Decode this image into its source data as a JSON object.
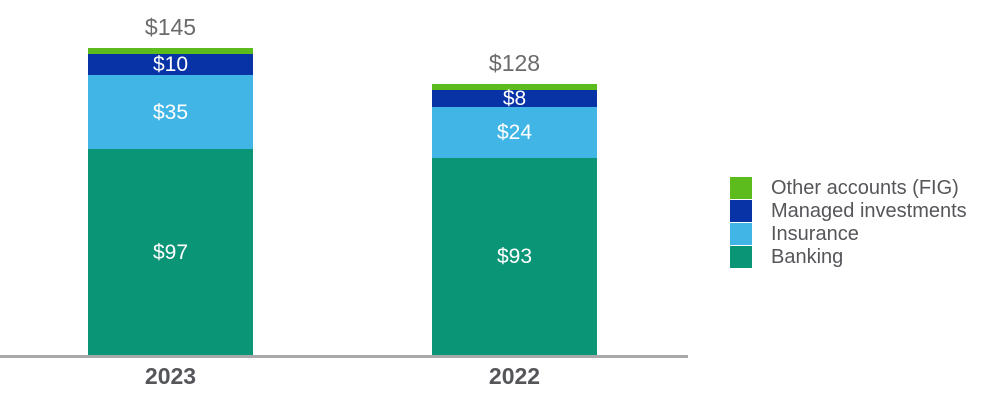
{
  "chart_data": {
    "type": "bar",
    "subtype": "stacked-vertical",
    "categories": [
      "2023",
      "2022"
    ],
    "totals": [
      {
        "value": 145,
        "label": "$145"
      },
      {
        "value": 128,
        "label": "$128"
      }
    ],
    "series": [
      {
        "name": "Banking",
        "color": "#0B9577",
        "values": [
          97,
          93
        ],
        "labels": [
          "$97",
          "$93"
        ]
      },
      {
        "name": "Insurance",
        "color": "#41B6E6",
        "values": [
          35,
          24
        ],
        "labels": [
          "$35",
          "$24"
        ]
      },
      {
        "name": "Managed investments",
        "color": "#0833A6",
        "values": [
          10,
          8
        ],
        "labels": [
          "$10",
          "$8"
        ]
      },
      {
        "name": "Other accounts (FIG)",
        "color": "#5CBC1E",
        "values": [
          3,
          3
        ],
        "labels": [
          "",
          ""
        ]
      }
    ],
    "legend": {
      "position": "right",
      "items": [
        {
          "label": "Other accounts (FIG)",
          "color": "#5CBC1E"
        },
        {
          "label": "Managed investments",
          "color": "#0833A6"
        },
        {
          "label": "Insurance",
          "color": "#41B6E6"
        },
        {
          "label": "Banking",
          "color": "#0B9577"
        }
      ]
    },
    "title": "",
    "xlabel": "",
    "ylabel": "",
    "grid": false,
    "value_axis_visible": false,
    "baseline_axis": {
      "visible": true,
      "color": "#A8A9AB"
    },
    "value_label_color": "#FFFFFF",
    "total_label_color": "#6B6B6B",
    "category_label_color": "#55565A"
  }
}
